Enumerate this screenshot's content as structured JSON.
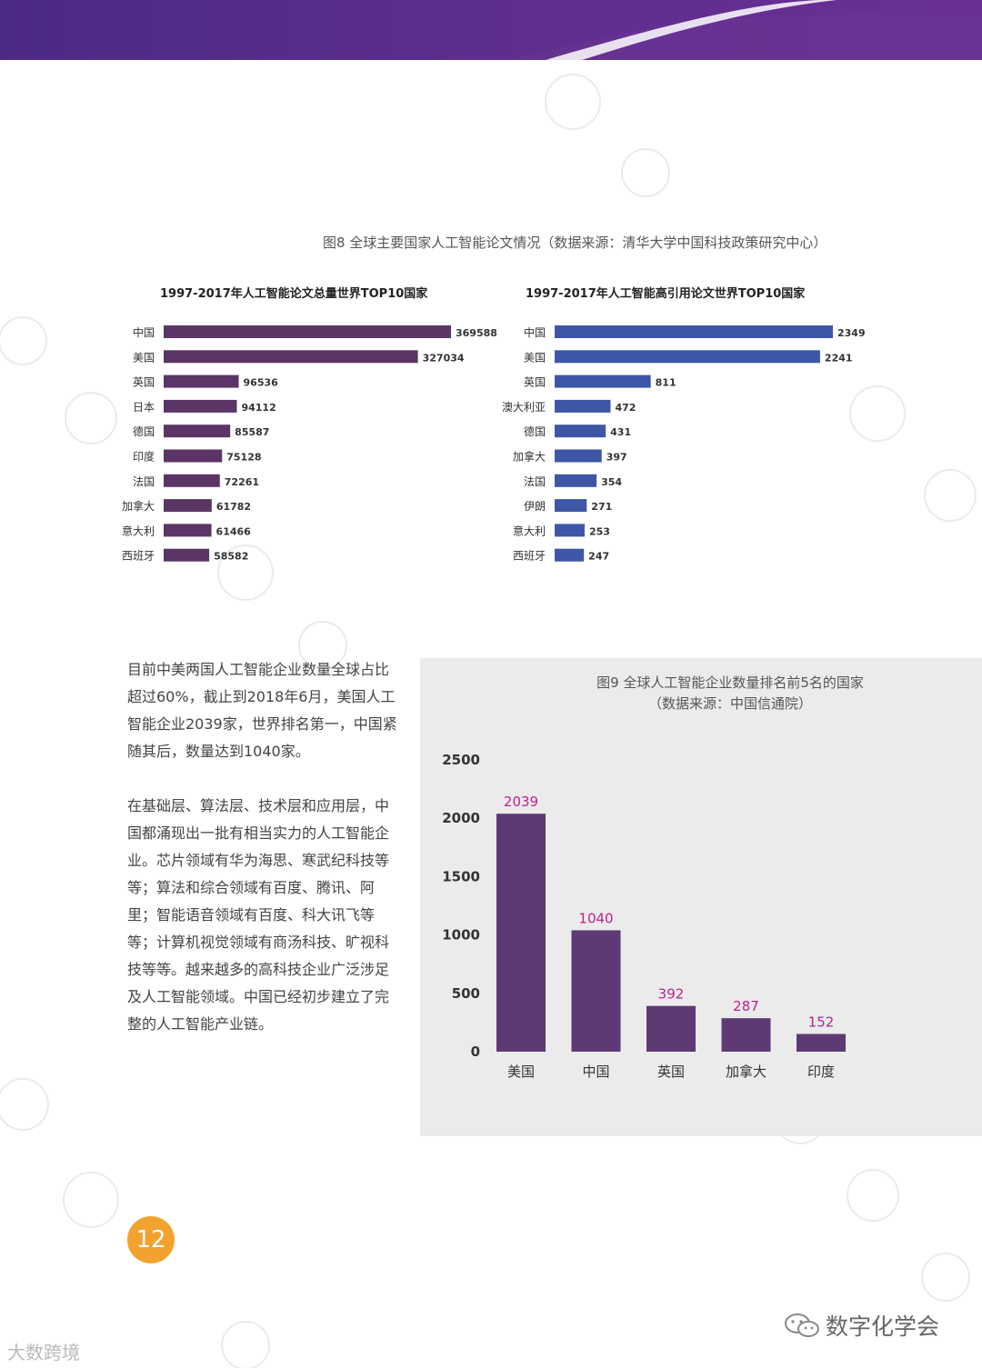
{
  "figure8": {
    "caption": "图8 全球主要国家人工智能论文情况（数据来源：清华大学中国科技政策研究中心）"
  },
  "figure9": {
    "caption_line1": "图9 全球人工智能企业数量排名前5名的国家",
    "caption_line2": "（数据来源：中国信通院）"
  },
  "text": {
    "paragraph1": "目前中美两国人工智能企业数量全球占比超过60%，截止到2018年6月，美国人工智能企业2039家，世界排名第一，中国紧随其后，数量达到1040家。",
    "paragraph2": "在基础层、算法层、技术层和应用层，中国都涌现出一批有相当实力的人工智能企业。芯片领域有华为海思、寒武纪科技等等；算法和综合领域有百度、腾讯、阿里；智能语音领域有百度、科大讯飞等等；计算机视觉领域有商汤科技、旷视科技等等。越来越多的高科技企业广泛涉足及人工智能领域。中国已经初步建立了完整的人工智能产业链。"
  },
  "page_number": "12",
  "watermarks": {
    "bottom_left": "大数跨境",
    "bottom_right": "数字化学会",
    "bottom_right_icon": "wechat-icon"
  },
  "colors": {
    "purple_band": "#5a2d8c",
    "left_bar": "#5b3566",
    "right_bar": "#3d57a6",
    "vbar": "#5e3a75",
    "vbar_label": "#c0218c",
    "page_badge": "#f2a22e",
    "panel_bg": "#ebebec"
  },
  "chart_data": [
    {
      "type": "bar",
      "orientation": "horizontal",
      "title": "1997-2017年人工智能论文总量世界TOP10国家",
      "categories": [
        "中国",
        "美国",
        "英国",
        "日本",
        "德国",
        "印度",
        "法国",
        "加拿大",
        "意大利",
        "西班牙"
      ],
      "values": [
        369588,
        327034,
        96536,
        94112,
        85587,
        75128,
        72261,
        61782,
        61466,
        58582
      ]
    },
    {
      "type": "bar",
      "orientation": "horizontal",
      "title": "1997-2017年人工智能高引用论文世界TOP10国家",
      "categories": [
        "中国",
        "美国",
        "英国",
        "澳大利亚",
        "德国",
        "加拿大",
        "法国",
        "伊朗",
        "意大利",
        "西班牙"
      ],
      "values": [
        2349,
        2241,
        811,
        472,
        431,
        397,
        354,
        271,
        253,
        247
      ]
    },
    {
      "type": "bar",
      "orientation": "vertical",
      "categories": [
        "美国",
        "中国",
        "英国",
        "加拿大",
        "印度"
      ],
      "values": [
        2039,
        1040,
        392,
        287,
        152
      ],
      "yticks": [
        "0",
        "500",
        "1000",
        "1500",
        "2000",
        "2500"
      ],
      "ylim": [
        0,
        2500
      ],
      "grid": false
    }
  ]
}
